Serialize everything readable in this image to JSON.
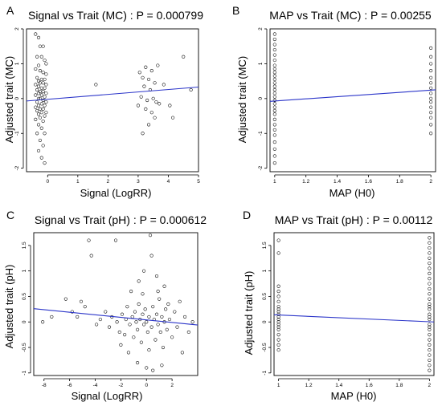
{
  "figure": {
    "panel_count": 4
  },
  "chart_data": [
    {
      "type": "scatter",
      "letter": "A",
      "title": "Signal vs Trait (MC) : P = 0.000799",
      "xlabel": "Signal (LogRR)",
      "ylabel": "Adjusted trait (MC)",
      "xlim": [
        -0.7,
        5.0
      ],
      "ylim": [
        -2.1,
        2.0
      ],
      "xticks": [
        0,
        1,
        2,
        3,
        4,
        5
      ],
      "yticks": [
        -2,
        -1,
        0,
        1,
        2
      ],
      "grid": false,
      "fit_line": {
        "x": [
          -0.7,
          5.0
        ],
        "y": [
          -0.07,
          0.33
        ]
      },
      "points": [
        {
          "x": -0.4,
          "y": 1.85
        },
        {
          "x": -0.3,
          "y": 1.75
        },
        {
          "x": -0.25,
          "y": 1.5
        },
        {
          "x": -0.15,
          "y": 1.5
        },
        {
          "x": -0.35,
          "y": 1.2
        },
        {
          "x": -0.2,
          "y": 1.2
        },
        {
          "x": -0.1,
          "y": 1.1
        },
        {
          "x": -0.3,
          "y": 0.95
        },
        {
          "x": -0.4,
          "y": 0.85
        },
        {
          "x": -0.25,
          "y": 0.8
        },
        {
          "x": -0.15,
          "y": 0.75
        },
        {
          "x": -0.05,
          "y": 0.7
        },
        {
          "x": -0.35,
          "y": 0.6
        },
        {
          "x": -0.2,
          "y": 0.55
        },
        {
          "x": -0.1,
          "y": 0.55
        },
        {
          "x": -0.3,
          "y": 0.5
        },
        {
          "x": -0.25,
          "y": 0.45
        },
        {
          "x": -0.15,
          "y": 0.45
        },
        {
          "x": -0.4,
          "y": 0.4
        },
        {
          "x": -0.05,
          "y": 0.4
        },
        {
          "x": -0.3,
          "y": 0.35
        },
        {
          "x": -0.2,
          "y": 0.3
        },
        {
          "x": -0.1,
          "y": 0.3
        },
        {
          "x": -0.35,
          "y": 0.25
        },
        {
          "x": -0.25,
          "y": 0.2
        },
        {
          "x": -0.15,
          "y": 0.2
        },
        {
          "x": -0.3,
          "y": 0.15
        },
        {
          "x": -0.05,
          "y": 0.15
        },
        {
          "x": -0.4,
          "y": 0.1
        },
        {
          "x": -0.2,
          "y": 0.1
        },
        {
          "x": -0.1,
          "y": 0.05
        },
        {
          "x": -0.3,
          "y": 0.0
        },
        {
          "x": -0.25,
          "y": 0.0
        },
        {
          "x": -0.15,
          "y": -0.05
        },
        {
          "x": -0.35,
          "y": -0.1
        },
        {
          "x": -0.05,
          "y": -0.1
        },
        {
          "x": -0.2,
          "y": -0.15
        },
        {
          "x": -0.3,
          "y": -0.2
        },
        {
          "x": -0.1,
          "y": -0.2
        },
        {
          "x": -0.4,
          "y": -0.25
        },
        {
          "x": -0.25,
          "y": -0.3
        },
        {
          "x": -0.15,
          "y": -0.3
        },
        {
          "x": -0.35,
          "y": -0.35
        },
        {
          "x": -0.2,
          "y": -0.4
        },
        {
          "x": -0.05,
          "y": -0.4
        },
        {
          "x": -0.3,
          "y": -0.45
        },
        {
          "x": -0.1,
          "y": -0.5
        },
        {
          "x": -0.25,
          "y": -0.55
        },
        {
          "x": -0.4,
          "y": -0.6
        },
        {
          "x": -0.15,
          "y": -0.65
        },
        {
          "x": -0.3,
          "y": -0.75
        },
        {
          "x": -0.2,
          "y": -0.85
        },
        {
          "x": -0.35,
          "y": -1.0
        },
        {
          "x": -0.1,
          "y": -1.0
        },
        {
          "x": -0.25,
          "y": -1.2
        },
        {
          "x": -0.15,
          "y": -1.35
        },
        {
          "x": -0.3,
          "y": -1.5
        },
        {
          "x": -0.2,
          "y": -1.7
        },
        {
          "x": -0.1,
          "y": -1.85
        },
        {
          "x": -0.05,
          "y": 1.0
        },
        {
          "x": 1.6,
          "y": 0.4
        },
        {
          "x": 3.05,
          "y": 0.75
        },
        {
          "x": 3.15,
          "y": 0.6
        },
        {
          "x": 3.25,
          "y": 0.9
        },
        {
          "x": 3.35,
          "y": 0.55
        },
        {
          "x": 3.45,
          "y": 0.8
        },
        {
          "x": 3.55,
          "y": 0.45
        },
        {
          "x": 3.65,
          "y": 0.95
        },
        {
          "x": 3.2,
          "y": 0.35
        },
        {
          "x": 3.4,
          "y": 0.25
        },
        {
          "x": 3.1,
          "y": 0.05
        },
        {
          "x": 3.3,
          "y": -0.05
        },
        {
          "x": 3.5,
          "y": 0.0
        },
        {
          "x": 3.6,
          "y": -0.1
        },
        {
          "x": 3.0,
          "y": -0.2
        },
        {
          "x": 3.25,
          "y": -0.3
        },
        {
          "x": 3.45,
          "y": -0.4
        },
        {
          "x": 3.7,
          "y": -0.15
        },
        {
          "x": 3.55,
          "y": -0.55
        },
        {
          "x": 3.35,
          "y": -0.75
        },
        {
          "x": 3.15,
          "y": -1.0
        },
        {
          "x": 3.85,
          "y": 0.4
        },
        {
          "x": 4.05,
          "y": -0.2
        },
        {
          "x": 4.15,
          "y": -0.55
        },
        {
          "x": 4.5,
          "y": 1.2
        },
        {
          "x": 4.75,
          "y": 0.25
        }
      ]
    },
    {
      "type": "scatter",
      "letter": "B",
      "title": "MAP vs Trait (MC) : P = 0.00255",
      "xlabel": "MAP (H0)",
      "ylabel": "Adjusted trait (MC)",
      "xlim": [
        0.97,
        2.03
      ],
      "ylim": [
        -2.1,
        2.0
      ],
      "xticks": [
        1.0,
        1.2,
        1.4,
        1.6,
        1.8,
        2.0
      ],
      "yticks": [
        -2,
        -1,
        0,
        1,
        2
      ],
      "grid": false,
      "fit_line": {
        "x": [
          0.97,
          2.03
        ],
        "y": [
          -0.08,
          0.25
        ]
      },
      "points": [
        {
          "x": 1.0,
          "y": 1.85
        },
        {
          "x": 1.0,
          "y": 1.7
        },
        {
          "x": 1.0,
          "y": 1.55
        },
        {
          "x": 1.0,
          "y": 1.4
        },
        {
          "x": 1.0,
          "y": 1.25
        },
        {
          "x": 1.0,
          "y": 1.1
        },
        {
          "x": 1.0,
          "y": 0.95
        },
        {
          "x": 1.0,
          "y": 0.85
        },
        {
          "x": 1.0,
          "y": 0.75
        },
        {
          "x": 1.0,
          "y": 0.65
        },
        {
          "x": 1.0,
          "y": 0.55
        },
        {
          "x": 1.0,
          "y": 0.45
        },
        {
          "x": 1.0,
          "y": 0.35
        },
        {
          "x": 1.0,
          "y": 0.25
        },
        {
          "x": 1.0,
          "y": 0.15
        },
        {
          "x": 1.0,
          "y": 0.05
        },
        {
          "x": 1.0,
          "y": -0.05
        },
        {
          "x": 1.0,
          "y": -0.15
        },
        {
          "x": 1.0,
          "y": -0.25
        },
        {
          "x": 1.0,
          "y": -0.35
        },
        {
          "x": 1.0,
          "y": -0.45
        },
        {
          "x": 1.0,
          "y": -0.6
        },
        {
          "x": 1.0,
          "y": -0.75
        },
        {
          "x": 1.0,
          "y": -0.9
        },
        {
          "x": 1.0,
          "y": -1.05
        },
        {
          "x": 1.0,
          "y": -1.25
        },
        {
          "x": 1.0,
          "y": -1.45
        },
        {
          "x": 1.0,
          "y": -1.65
        },
        {
          "x": 1.0,
          "y": -1.85
        },
        {
          "x": 2.0,
          "y": 1.45
        },
        {
          "x": 2.0,
          "y": 1.2
        },
        {
          "x": 2.0,
          "y": 1.0
        },
        {
          "x": 2.0,
          "y": 0.8
        },
        {
          "x": 2.0,
          "y": 0.6
        },
        {
          "x": 2.0,
          "y": 0.45
        },
        {
          "x": 2.0,
          "y": 0.3
        },
        {
          "x": 2.0,
          "y": 0.15
        },
        {
          "x": 2.0,
          "y": 0.0
        },
        {
          "x": 2.0,
          "y": -0.1
        },
        {
          "x": 2.0,
          "y": -0.25
        },
        {
          "x": 2.0,
          "y": -0.4
        },
        {
          "x": 2.0,
          "y": -0.55
        },
        {
          "x": 2.0,
          "y": -0.75
        },
        {
          "x": 2.0,
          "y": -1.0
        }
      ]
    },
    {
      "type": "scatter",
      "letter": "C",
      "title": "Signal vs Trait (pH) : P = 0.000612",
      "xlabel": "Signal (LogRR)",
      "ylabel": "Adjusted trait (pH)",
      "xlim": [
        -8.8,
        4.0
      ],
      "ylim": [
        -1.05,
        1.75
      ],
      "xticks": [
        -8,
        -6,
        -4,
        -2,
        0,
        2
      ],
      "yticks": [
        -1.0,
        -0.5,
        0.0,
        0.5,
        1.0,
        1.5
      ],
      "grid": false,
      "fit_line": {
        "x": [
          -8.8,
          4.0
        ],
        "y": [
          0.26,
          -0.06
        ]
      },
      "points": [
        {
          "x": -8.1,
          "y": 0.0
        },
        {
          "x": -7.4,
          "y": 0.1
        },
        {
          "x": -6.3,
          "y": 0.45
        },
        {
          "x": -5.8,
          "y": 0.2
        },
        {
          "x": -5.4,
          "y": 0.1
        },
        {
          "x": -5.1,
          "y": 0.4
        },
        {
          "x": -4.8,
          "y": 0.3
        },
        {
          "x": -4.5,
          "y": 1.6
        },
        {
          "x": -4.3,
          "y": 1.3
        },
        {
          "x": -3.9,
          "y": -0.05
        },
        {
          "x": -3.6,
          "y": 0.05
        },
        {
          "x": -3.2,
          "y": 0.2
        },
        {
          "x": -2.9,
          "y": -0.1
        },
        {
          "x": -2.7,
          "y": 0.1
        },
        {
          "x": -2.4,
          "y": 1.6
        },
        {
          "x": -2.3,
          "y": 0.0
        },
        {
          "x": -2.1,
          "y": -0.2
        },
        {
          "x": -1.9,
          "y": 0.15
        },
        {
          "x": -1.7,
          "y": -0.25
        },
        {
          "x": -1.6,
          "y": 0.05
        },
        {
          "x": -1.5,
          "y": 0.3
        },
        {
          "x": -1.3,
          "y": -0.05
        },
        {
          "x": -1.2,
          "y": 0.6
        },
        {
          "x": -1.1,
          "y": 0.1
        },
        {
          "x": -1.0,
          "y": -0.3
        },
        {
          "x": -0.9,
          "y": 0.2
        },
        {
          "x": -0.8,
          "y": 0.0
        },
        {
          "x": -0.7,
          "y": -0.15
        },
        {
          "x": -0.6,
          "y": 0.35
        },
        {
          "x": -0.5,
          "y": 0.05
        },
        {
          "x": -0.4,
          "y": -0.4
        },
        {
          "x": -0.3,
          "y": 0.15
        },
        {
          "x": -0.2,
          "y": -0.05
        },
        {
          "x": -0.1,
          "y": 0.25
        },
        {
          "x": 0.0,
          "y": 0.0
        },
        {
          "x": 0.1,
          "y": -0.2
        },
        {
          "x": 0.2,
          "y": 0.1
        },
        {
          "x": 0.3,
          "y": 1.7
        },
        {
          "x": 0.4,
          "y": -0.1
        },
        {
          "x": 0.5,
          "y": 0.3
        },
        {
          "x": 0.6,
          "y": 0.05
        },
        {
          "x": 0.7,
          "y": -0.35
        },
        {
          "x": 0.8,
          "y": 0.15
        },
        {
          "x": 0.9,
          "y": -0.05
        },
        {
          "x": 1.0,
          "y": 0.45
        },
        {
          "x": 1.1,
          "y": -0.2
        },
        {
          "x": 1.2,
          "y": 0.1
        },
        {
          "x": 1.3,
          "y": -0.5
        },
        {
          "x": 1.4,
          "y": 0.0
        },
        {
          "x": 1.5,
          "y": 0.25
        },
        {
          "x": 1.6,
          "y": -0.15
        },
        {
          "x": 1.8,
          "y": 0.05
        },
        {
          "x": 2.0,
          "y": -0.3
        },
        {
          "x": 2.2,
          "y": 0.2
        },
        {
          "x": 2.4,
          "y": -0.1
        },
        {
          "x": 2.6,
          "y": 0.4
        },
        {
          "x": 2.8,
          "y": -0.6
        },
        {
          "x": 3.0,
          "y": 0.1
        },
        {
          "x": 3.3,
          "y": -0.2
        },
        {
          "x": 3.6,
          "y": 0.0
        },
        {
          "x": -1.4,
          "y": -0.6
        },
        {
          "x": -0.7,
          "y": -0.8
        },
        {
          "x": 0.0,
          "y": -0.9
        },
        {
          "x": 0.5,
          "y": -0.95
        },
        {
          "x": 1.2,
          "y": -0.85
        },
        {
          "x": -0.2,
          "y": 1.0
        },
        {
          "x": 0.4,
          "y": 1.3
        },
        {
          "x": 0.8,
          "y": 0.9
        },
        {
          "x": -0.6,
          "y": 0.8
        },
        {
          "x": 1.4,
          "y": 0.7
        },
        {
          "x": -2.0,
          "y": -0.45
        },
        {
          "x": -0.3,
          "y": 0.55
        },
        {
          "x": 0.2,
          "y": -0.55
        },
        {
          "x": 0.9,
          "y": 0.6
        },
        {
          "x": 1.7,
          "y": 0.35
        }
      ]
    },
    {
      "type": "scatter",
      "letter": "D",
      "title": "MAP vs Trait (pH) : P = 0.00112",
      "xlabel": "MAP (H0)",
      "ylabel": "Adjusted trait (pH)",
      "xlim": [
        0.97,
        2.03
      ],
      "ylim": [
        -1.05,
        1.75
      ],
      "xticks": [
        1.0,
        1.2,
        1.4,
        1.6,
        1.8,
        2.0
      ],
      "yticks": [
        -1.0,
        -0.5,
        0.0,
        0.5,
        1.0,
        1.5
      ],
      "grid": false,
      "fit_line": {
        "x": [
          0.97,
          2.03
        ],
        "y": [
          0.14,
          0.0
        ]
      },
      "points": [
        {
          "x": 1.0,
          "y": 1.6
        },
        {
          "x": 1.0,
          "y": 1.35
        },
        {
          "x": 1.0,
          "y": 0.7
        },
        {
          "x": 1.0,
          "y": 0.6
        },
        {
          "x": 1.0,
          "y": 0.5
        },
        {
          "x": 1.0,
          "y": 0.4
        },
        {
          "x": 1.0,
          "y": 0.3
        },
        {
          "x": 1.0,
          "y": 0.25
        },
        {
          "x": 1.0,
          "y": 0.2
        },
        {
          "x": 1.0,
          "y": 0.15
        },
        {
          "x": 1.0,
          "y": 0.1
        },
        {
          "x": 1.0,
          "y": 0.05
        },
        {
          "x": 1.0,
          "y": 0.0
        },
        {
          "x": 1.0,
          "y": -0.05
        },
        {
          "x": 1.0,
          "y": -0.1
        },
        {
          "x": 1.0,
          "y": -0.15
        },
        {
          "x": 1.0,
          "y": -0.25
        },
        {
          "x": 1.0,
          "y": -0.35
        },
        {
          "x": 1.0,
          "y": -0.45
        },
        {
          "x": 1.0,
          "y": -0.55
        },
        {
          "x": 2.0,
          "y": 1.65
        },
        {
          "x": 2.0,
          "y": 1.55
        },
        {
          "x": 2.0,
          "y": 1.45
        },
        {
          "x": 2.0,
          "y": 1.35
        },
        {
          "x": 2.0,
          "y": 1.25
        },
        {
          "x": 2.0,
          "y": 1.15
        },
        {
          "x": 2.0,
          "y": 1.05
        },
        {
          "x": 2.0,
          "y": 0.95
        },
        {
          "x": 2.0,
          "y": 0.85
        },
        {
          "x": 2.0,
          "y": 0.75
        },
        {
          "x": 2.0,
          "y": 0.65
        },
        {
          "x": 2.0,
          "y": 0.55
        },
        {
          "x": 2.0,
          "y": 0.45
        },
        {
          "x": 2.0,
          "y": 0.35
        },
        {
          "x": 2.0,
          "y": 0.25
        },
        {
          "x": 2.0,
          "y": 0.15
        },
        {
          "x": 2.0,
          "y": 0.05
        },
        {
          "x": 2.0,
          "y": -0.05
        },
        {
          "x": 2.0,
          "y": -0.15
        },
        {
          "x": 2.0,
          "y": -0.25
        },
        {
          "x": 2.0,
          "y": -0.35
        },
        {
          "x": 2.0,
          "y": -0.45
        },
        {
          "x": 2.0,
          "y": -0.55
        },
        {
          "x": 2.0,
          "y": -0.65
        },
        {
          "x": 2.0,
          "y": -0.75
        },
        {
          "x": 2.0,
          "y": -0.85
        },
        {
          "x": 2.0,
          "y": -0.95
        },
        {
          "x": 2.0,
          "y": 0.3
        },
        {
          "x": 2.0,
          "y": 0.1
        },
        {
          "x": 2.0,
          "y": -0.1
        }
      ]
    }
  ],
  "colors": {
    "fit_line": "#2b35c9",
    "points": "#000000",
    "background": "#ffffff"
  }
}
